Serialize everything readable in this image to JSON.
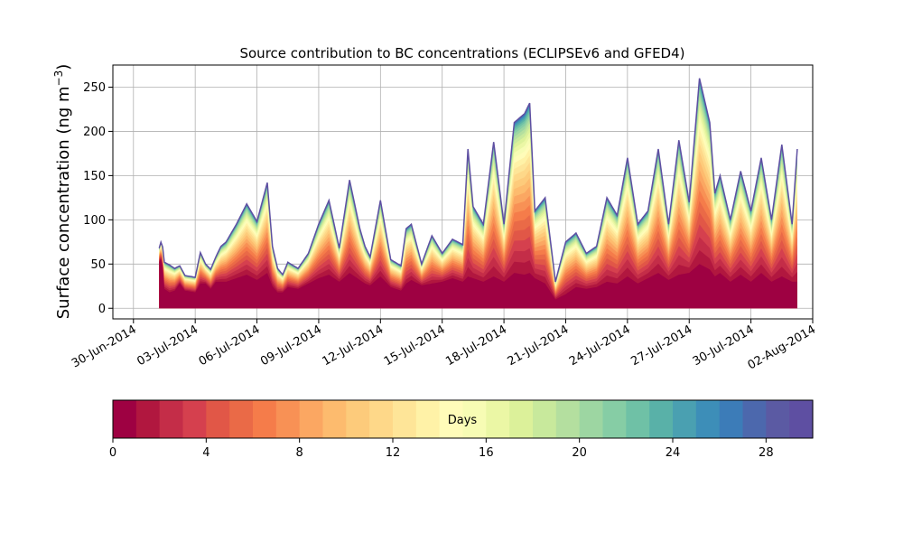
{
  "chart_data": {
    "type": "area",
    "stacked": true,
    "title": "Source contribution to BC concentrations (ECLIPSEv6 and GFED4)",
    "xlabel": "",
    "ylabel_main": "Surface concentration (ng m",
    "ylabel_sup": "−3",
    "ylabel_close": ")",
    "ylim": [
      -12,
      275
    ],
    "yticks": [
      0,
      50,
      100,
      150,
      200,
      250
    ],
    "xlim": [
      "2014-06-29",
      "2014-08-02"
    ],
    "xticks": [
      "30-Jun-2014",
      "03-Jul-2014",
      "06-Jul-2014",
      "09-Jul-2014",
      "12-Jul-2014",
      "15-Jul-2014",
      "18-Jul-2014",
      "21-Jul-2014",
      "24-Jul-2014",
      "27-Jul-2014",
      "30-Jul-2014",
      "02-Aug-2014"
    ],
    "grid": true,
    "series_count": 30,
    "total_series": {
      "x": [
        "2014-07-01 06:00",
        "2014-07-01 09:00",
        "2014-07-01 12:00",
        "2014-07-01 18:00",
        "2014-07-02 00:00",
        "2014-07-02 06:00",
        "2014-07-02 12:00",
        "2014-07-03 00:00",
        "2014-07-03 06:00",
        "2014-07-03 12:00",
        "2014-07-03 18:00",
        "2014-07-04 00:00",
        "2014-07-04 06:00",
        "2014-07-04 12:00",
        "2014-07-05 00:00",
        "2014-07-05 12:00",
        "2014-07-06 00:00",
        "2014-07-06 12:00",
        "2014-07-06 18:00",
        "2014-07-07 00:00",
        "2014-07-07 06:00",
        "2014-07-07 12:00",
        "2014-07-08 00:00",
        "2014-07-08 12:00",
        "2014-07-09 00:00",
        "2014-07-09 12:00",
        "2014-07-10 00:00",
        "2014-07-10 12:00",
        "2014-07-11 00:00",
        "2014-07-11 06:00",
        "2014-07-11 12:00",
        "2014-07-12 00:00",
        "2014-07-12 12:00",
        "2014-07-13 00:00",
        "2014-07-13 06:00",
        "2014-07-13 12:00",
        "2014-07-14 00:00",
        "2014-07-14 12:00",
        "2014-07-15 00:00",
        "2014-07-15 12:00",
        "2014-07-16 00:00",
        "2014-07-16 06:00",
        "2014-07-16 12:00",
        "2014-07-17 00:00",
        "2014-07-17 12:00",
        "2014-07-18 00:00",
        "2014-07-18 12:00",
        "2014-07-19 00:00",
        "2014-07-19 06:00",
        "2014-07-19 12:00",
        "2014-07-20 00:00",
        "2014-07-20 12:00",
        "2014-07-21 00:00",
        "2014-07-21 12:00",
        "2014-07-22 00:00",
        "2014-07-22 12:00",
        "2014-07-23 00:00",
        "2014-07-23 12:00",
        "2014-07-24 00:00",
        "2014-07-24 12:00",
        "2014-07-25 00:00",
        "2014-07-25 12:00",
        "2014-07-26 00:00",
        "2014-07-26 12:00",
        "2014-07-27 00:00",
        "2014-07-27 12:00",
        "2014-07-28 00:00",
        "2014-07-28 06:00",
        "2014-07-28 12:00",
        "2014-07-29 00:00",
        "2014-07-29 12:00",
        "2014-07-30 00:00",
        "2014-07-30 12:00",
        "2014-07-31 00:00",
        "2014-07-31 12:00",
        "2014-08-01 00:00",
        "2014-08-01 06:00"
      ],
      "values": [
        68,
        78,
        52,
        49,
        45,
        48,
        37,
        35,
        63,
        50,
        44,
        58,
        70,
        75,
        95,
        118,
        98,
        142,
        70,
        45,
        38,
        52,
        45,
        62,
        95,
        122,
        68,
        145,
        90,
        70,
        58,
        122,
        55,
        48,
        90,
        95,
        50,
        82,
        62,
        78,
        72,
        180,
        115,
        95,
        188,
        95,
        210,
        220,
        232,
        110,
        125,
        30,
        75,
        85,
        62,
        70,
        125,
        105,
        170,
        95,
        110,
        180,
        95,
        190,
        120,
        260,
        210,
        130,
        150,
        100,
        155,
        110,
        170,
        100,
        185,
        95,
        180
      ]
    },
    "base_series": {
      "name": "0 days",
      "values": [
        52,
        58,
        22,
        18,
        20,
        28,
        20,
        18,
        28,
        28,
        22,
        30,
        30,
        30,
        34,
        38,
        32,
        40,
        25,
        18,
        18,
        24,
        22,
        28,
        34,
        38,
        30,
        40,
        32,
        28,
        26,
        36,
        24,
        20,
        28,
        32,
        26,
        28,
        30,
        34,
        30,
        36,
        34,
        30,
        36,
        30,
        40,
        38,
        40,
        34,
        28,
        10,
        16,
        24,
        22,
        24,
        30,
        28,
        36,
        28,
        34,
        40,
        32,
        38,
        40,
        50,
        44,
        36,
        40,
        30,
        38,
        30,
        40,
        30,
        36,
        30,
        30
      ]
    },
    "colorbar": {
      "label": "Days",
      "min": 0,
      "max": 30,
      "ticks": [
        0,
        4,
        8,
        12,
        16,
        20,
        24,
        28
      ],
      "colors": [
        "#9e0142",
        "#b1173f",
        "#c42d48",
        "#d5404e",
        "#e15747",
        "#ea6a47",
        "#f57c4a",
        "#f89155",
        "#fba762",
        "#fdbb6e",
        "#fdcb7b",
        "#fed889",
        "#fee598",
        "#fff2a7",
        "#fffcb9",
        "#f7fcb4",
        "#ebf7a5",
        "#dcf19a",
        "#c8e99c",
        "#b4df9f",
        "#9dd6a2",
        "#86cda5",
        "#6fc1a6",
        "#59b1a8",
        "#4aa0b1",
        "#3d8eb8",
        "#3c7cb8",
        "#4c68ad",
        "#5b5aa3",
        "#5e4fa2"
      ]
    }
  }
}
